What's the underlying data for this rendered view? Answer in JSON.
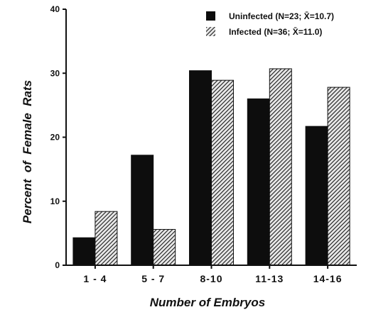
{
  "chart_data": {
    "type": "bar",
    "title": "",
    "xlabel": "Number of Embryos",
    "ylabel": "Percent  of  Female  Rats",
    "categories": [
      "1 - 4",
      "5 - 7",
      "8-10",
      "11-13",
      "14-16"
    ],
    "ylim": [
      0,
      40
    ],
    "yticks": [
      0,
      10,
      20,
      30,
      40
    ],
    "grid": false,
    "legend_position": "top-right",
    "series": [
      {
        "name": "Uninfected (N=23; X̄=10.7)",
        "values": [
          4.3,
          17.2,
          30.4,
          26.0,
          21.7
        ],
        "pattern": "solid",
        "color": "#0d0d0d"
      },
      {
        "name": "Infected (N=36; X̄=11.0)",
        "values": [
          8.4,
          5.6,
          28.9,
          30.7,
          27.8
        ],
        "pattern": "diagonal-hatch",
        "color": "#222222"
      }
    ]
  }
}
